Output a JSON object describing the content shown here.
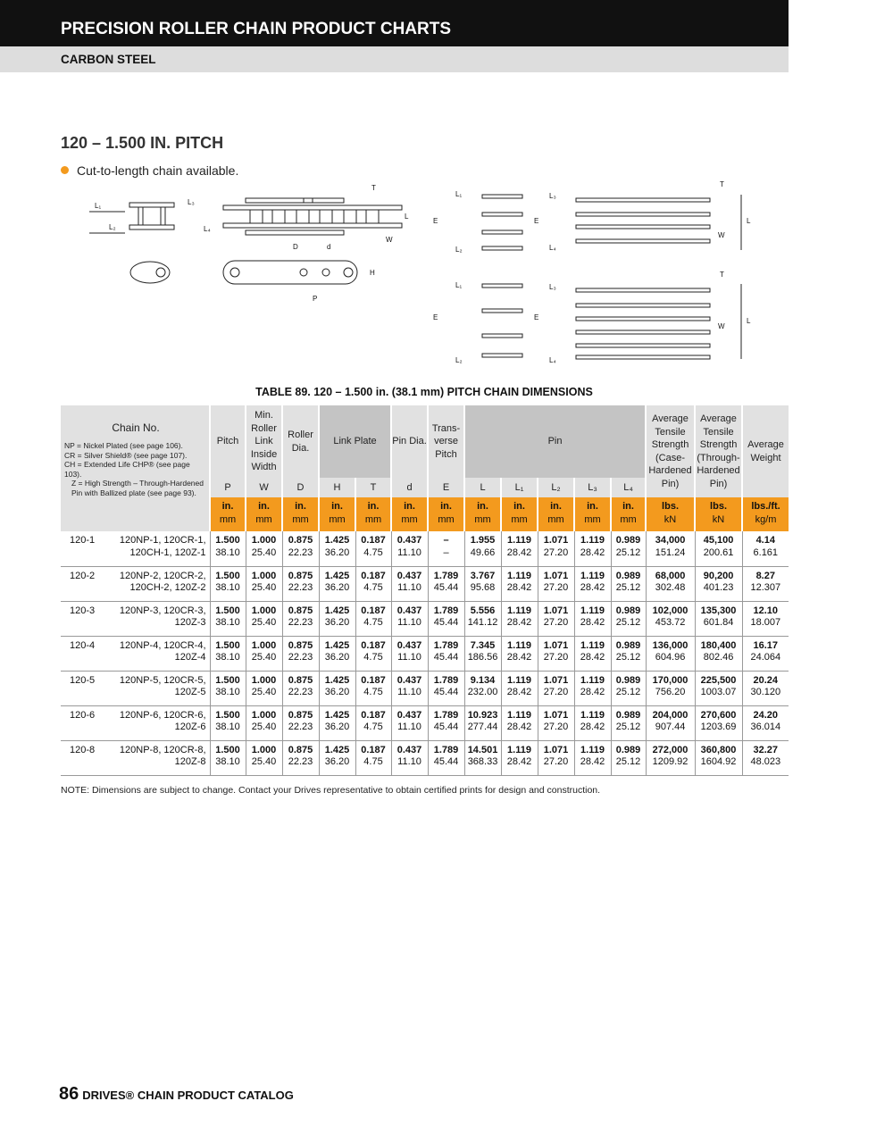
{
  "header": {
    "title": "PRECISION ROLLER CHAIN PRODUCT CHARTS",
    "subtitle": "CARBON STEEL"
  },
  "section": {
    "title": "120 – 1.500 IN. PITCH",
    "bullet": "Cut-to-length chain available.",
    "bullet_color": "#f39a1e"
  },
  "diagram_labels": {
    "L1": "L₁",
    "L2": "L₂",
    "L3": "L₃",
    "L4": "L₄",
    "T": "T",
    "W": "W",
    "L": "L",
    "D": "D",
    "d": "d",
    "H": "H",
    "P": "P",
    "E": "E"
  },
  "table": {
    "caption": "TABLE 89. 120 – 1.500 in. (38.1 mm) PITCH CHAIN DIMENSIONS",
    "chain_header": "Chain No.",
    "chain_notes": [
      "NP = Nickel Plated (see page 106).",
      "CR = Silver Shield® (see page 107).",
      "CH = Extended Life CHP® (see page 103).",
      "Z = High Strength – Through-Hardened Pin with Ballized plate (see page 93)."
    ],
    "headers": {
      "pitch": "Pitch",
      "width": "Min. Roller Link Inside Width",
      "roller": "Roller Dia.",
      "link_plate": "Link Plate",
      "pin_dia": "Pin Dia.",
      "transverse": "Trans-verse Pitch",
      "pin": "Pin",
      "tensile_case": "Average Tensile Strength (Case-Hardened Pin)",
      "tensile_through": "Average Tensile Strength (Through-Hardened Pin)",
      "weight": "Average Weight"
    },
    "symbols": [
      "P",
      "W",
      "D",
      "H",
      "T",
      "d",
      "E",
      "L",
      "L₁",
      "L₂",
      "L₃",
      "L₄"
    ],
    "units": [
      [
        "in.",
        "mm"
      ],
      [
        "in.",
        "mm"
      ],
      [
        "in.",
        "mm"
      ],
      [
        "in.",
        "mm"
      ],
      [
        "in.",
        "mm"
      ],
      [
        "in.",
        "mm"
      ],
      [
        "in.",
        "mm"
      ],
      [
        "in.",
        "mm"
      ],
      [
        "in.",
        "mm"
      ],
      [
        "in.",
        "mm"
      ],
      [
        "in.",
        "mm"
      ],
      [
        "in.",
        "mm"
      ],
      [
        "lbs.",
        "kN"
      ],
      [
        "lbs.",
        "kN"
      ],
      [
        "lbs./ft.",
        "kg/m"
      ]
    ],
    "unit_color": "#f39a1e",
    "rows": [
      {
        "no": "120-1",
        "alt": [
          "120NP-1, 120CR-1,",
          "120CH-1, 120Z-1"
        ],
        "vals": [
          [
            "1.500",
            "38.10"
          ],
          [
            "1.000",
            "25.40"
          ],
          [
            "0.875",
            "22.23"
          ],
          [
            "1.425",
            "36.20"
          ],
          [
            "0.187",
            "4.75"
          ],
          [
            "0.437",
            "11.10"
          ],
          [
            "–",
            "–"
          ],
          [
            "1.955",
            "49.66"
          ],
          [
            "1.119",
            "28.42"
          ],
          [
            "1.071",
            "27.20"
          ],
          [
            "1.119",
            "28.42"
          ],
          [
            "0.989",
            "25.12"
          ],
          [
            "34,000",
            "151.24"
          ],
          [
            "45,100",
            "200.61"
          ],
          [
            "4.14",
            "6.161"
          ]
        ]
      },
      {
        "no": "120-2",
        "alt": [
          "120NP-2, 120CR-2,",
          "120CH-2, 120Z-2"
        ],
        "vals": [
          [
            "1.500",
            "38.10"
          ],
          [
            "1.000",
            "25.40"
          ],
          [
            "0.875",
            "22.23"
          ],
          [
            "1.425",
            "36.20"
          ],
          [
            "0.187",
            "4.75"
          ],
          [
            "0.437",
            "11.10"
          ],
          [
            "1.789",
            "45.44"
          ],
          [
            "3.767",
            "95.68"
          ],
          [
            "1.119",
            "28.42"
          ],
          [
            "1.071",
            "27.20"
          ],
          [
            "1.119",
            "28.42"
          ],
          [
            "0.989",
            "25.12"
          ],
          [
            "68,000",
            "302.48"
          ],
          [
            "90,200",
            "401.23"
          ],
          [
            "8.27",
            "12.307"
          ]
        ]
      },
      {
        "no": "120-3",
        "alt": [
          "120NP-3, 120CR-3,",
          "120Z-3"
        ],
        "vals": [
          [
            "1.500",
            "38.10"
          ],
          [
            "1.000",
            "25.40"
          ],
          [
            "0.875",
            "22.23"
          ],
          [
            "1.425",
            "36.20"
          ],
          [
            "0.187",
            "4.75"
          ],
          [
            "0.437",
            "11.10"
          ],
          [
            "1.789",
            "45.44"
          ],
          [
            "5.556",
            "141.12"
          ],
          [
            "1.119",
            "28.42"
          ],
          [
            "1.071",
            "27.20"
          ],
          [
            "1.119",
            "28.42"
          ],
          [
            "0.989",
            "25.12"
          ],
          [
            "102,000",
            "453.72"
          ],
          [
            "135,300",
            "601.84"
          ],
          [
            "12.10",
            "18.007"
          ]
        ]
      },
      {
        "no": "120-4",
        "alt": [
          "120NP-4, 120CR-4,",
          "120Z-4"
        ],
        "vals": [
          [
            "1.500",
            "38.10"
          ],
          [
            "1.000",
            "25.40"
          ],
          [
            "0.875",
            "22.23"
          ],
          [
            "1.425",
            "36.20"
          ],
          [
            "0.187",
            "4.75"
          ],
          [
            "0.437",
            "11.10"
          ],
          [
            "1.789",
            "45.44"
          ],
          [
            "7.345",
            "186.56"
          ],
          [
            "1.119",
            "28.42"
          ],
          [
            "1.071",
            "27.20"
          ],
          [
            "1.119",
            "28.42"
          ],
          [
            "0.989",
            "25.12"
          ],
          [
            "136,000",
            "604.96"
          ],
          [
            "180,400",
            "802.46"
          ],
          [
            "16.17",
            "24.064"
          ]
        ]
      },
      {
        "no": "120-5",
        "alt": [
          "120NP-5, 120CR-5,",
          "120Z-5"
        ],
        "vals": [
          [
            "1.500",
            "38.10"
          ],
          [
            "1.000",
            "25.40"
          ],
          [
            "0.875",
            "22.23"
          ],
          [
            "1.425",
            "36.20"
          ],
          [
            "0.187",
            "4.75"
          ],
          [
            "0.437",
            "11.10"
          ],
          [
            "1.789",
            "45.44"
          ],
          [
            "9.134",
            "232.00"
          ],
          [
            "1.119",
            "28.42"
          ],
          [
            "1.071",
            "27.20"
          ],
          [
            "1.119",
            "28.42"
          ],
          [
            "0.989",
            "25.12"
          ],
          [
            "170,000",
            "756.20"
          ],
          [
            "225,500",
            "1003.07"
          ],
          [
            "20.24",
            "30.120"
          ]
        ]
      },
      {
        "no": "120-6",
        "alt": [
          "120NP-6, 120CR-6,",
          "120Z-6"
        ],
        "vals": [
          [
            "1.500",
            "38.10"
          ],
          [
            "1.000",
            "25.40"
          ],
          [
            "0.875",
            "22.23"
          ],
          [
            "1.425",
            "36.20"
          ],
          [
            "0.187",
            "4.75"
          ],
          [
            "0.437",
            "11.10"
          ],
          [
            "1.789",
            "45.44"
          ],
          [
            "10.923",
            "277.44"
          ],
          [
            "1.119",
            "28.42"
          ],
          [
            "1.071",
            "27.20"
          ],
          [
            "1.119",
            "28.42"
          ],
          [
            "0.989",
            "25.12"
          ],
          [
            "204,000",
            "907.44"
          ],
          [
            "270,600",
            "1203.69"
          ],
          [
            "24.20",
            "36.014"
          ]
        ]
      },
      {
        "no": "120-8",
        "alt": [
          "120NP-8, 120CR-8,",
          "120Z-8"
        ],
        "vals": [
          [
            "1.500",
            "38.10"
          ],
          [
            "1.000",
            "25.40"
          ],
          [
            "0.875",
            "22.23"
          ],
          [
            "1.425",
            "36.20"
          ],
          [
            "0.187",
            "4.75"
          ],
          [
            "0.437",
            "11.10"
          ],
          [
            "1.789",
            "45.44"
          ],
          [
            "14.501",
            "368.33"
          ],
          [
            "1.119",
            "28.42"
          ],
          [
            "1.071",
            "27.20"
          ],
          [
            "1.119",
            "28.42"
          ],
          [
            "0.989",
            "25.12"
          ],
          [
            "272,000",
            "1209.92"
          ],
          [
            "360,800",
            "1604.92"
          ],
          [
            "32.27",
            "48.023"
          ]
        ]
      }
    ],
    "note": "NOTE: Dimensions are subject to change. Contact your Drives representative to obtain certified prints for design and construction."
  },
  "footer": {
    "page": "86",
    "title": "DRIVES® CHAIN PRODUCT CATALOG"
  }
}
